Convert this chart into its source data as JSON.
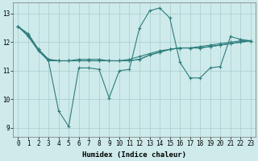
{
  "xlabel": "Humidex (Indice chaleur)",
  "ylabel": "",
  "bg_color": "#ceeaea",
  "line_color": "#2e7d7d",
  "grid_color": "#a8cccc",
  "xlim": [
    -0.5,
    23.5
  ],
  "ylim": [
    8.7,
    13.4
  ],
  "yticks": [
    9,
    10,
    11,
    12,
    13
  ],
  "xticks": [
    0,
    1,
    2,
    3,
    4,
    5,
    6,
    7,
    8,
    9,
    10,
    11,
    12,
    13,
    14,
    15,
    16,
    17,
    18,
    19,
    20,
    21,
    22,
    23
  ],
  "lines": [
    [
      12.55,
      12.3,
      11.75,
      11.35,
      9.6,
      9.05,
      11.1,
      11.1,
      11.05,
      10.05,
      11.0,
      11.05,
      12.5,
      13.1,
      13.2,
      12.85,
      11.3,
      10.75,
      10.75,
      11.1,
      11.15,
      12.2,
      12.1,
      12.05
    ],
    [
      12.55,
      12.2,
      11.7,
      11.35,
      11.35,
      11.35,
      11.4,
      11.4,
      11.4,
      11.35,
      11.35,
      11.4,
      11.5,
      11.6,
      11.7,
      11.75,
      11.8,
      11.8,
      11.85,
      11.9,
      11.95,
      12.0,
      12.05,
      12.05
    ],
    [
      12.55,
      12.25,
      11.75,
      11.4,
      11.35,
      11.35,
      11.35,
      11.35,
      11.35,
      11.35,
      11.35,
      11.35,
      11.4,
      11.55,
      11.65,
      11.75,
      11.8,
      11.8,
      11.8,
      11.85,
      11.9,
      11.95,
      12.0,
      12.05
    ],
    [
      12.55,
      12.25,
      11.75,
      11.4,
      11.35,
      11.35,
      11.35,
      11.35,
      11.35,
      11.35,
      11.35,
      11.35,
      11.4,
      11.55,
      11.65,
      11.75,
      11.8,
      11.8,
      11.8,
      11.85,
      11.9,
      11.95,
      12.0,
      12.05
    ]
  ],
  "marker": "+",
  "marker_size": 3,
  "linewidth": 0.8,
  "tick_fontsize": 5.5,
  "xlabel_fontsize": 6.5
}
